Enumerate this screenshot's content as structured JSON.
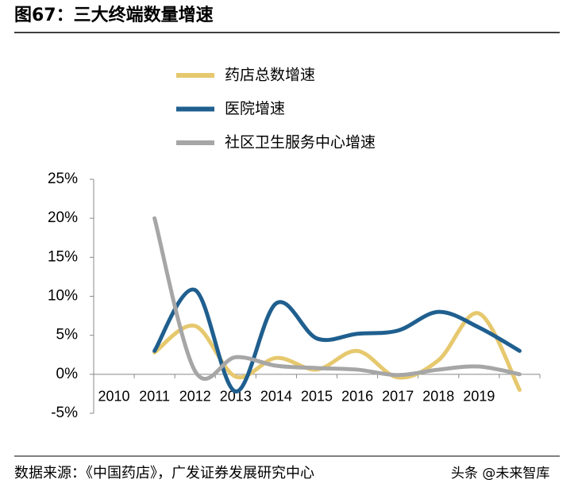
{
  "chart_data": {
    "type": "line",
    "title": "图67：三大终端数量增速",
    "categories": [
      "2010",
      "2011",
      "2012",
      "2013",
      "2014",
      "2015",
      "2016",
      "2017",
      "2018",
      "2019",
      null
    ],
    "series": [
      {
        "name": "药店总数增速",
        "color": "#e6c86e",
        "values": [
          null,
          2.8,
          6.2,
          -0.3,
          2.1,
          0.6,
          3.0,
          -0.4,
          1.8,
          7.8,
          -2.0
        ]
      },
      {
        "name": "医院增速",
        "color": "#1f5f8f",
        "values": [
          null,
          3.0,
          10.8,
          -2.2,
          9.1,
          4.6,
          5.2,
          5.6,
          8.0,
          6.0,
          3.0
        ]
      },
      {
        "name": "社区卫生服务中心增速",
        "color": "#a6a6a6",
        "values": [
          null,
          20.0,
          0.4,
          2.2,
          1.1,
          0.8,
          0.6,
          -0.1,
          0.6,
          1.0,
          0.0
        ]
      }
    ],
    "ylim": [
      -5,
      25
    ],
    "yticks": [
      {
        "value": -5,
        "label": "-5%"
      },
      {
        "value": 0,
        "label": "0%"
      },
      {
        "value": 5,
        "label": "5%"
      },
      {
        "value": 10,
        "label": "10%"
      },
      {
        "value": 15,
        "label": "15%"
      },
      {
        "value": 20,
        "label": "20%"
      },
      {
        "value": 25,
        "label": "25%"
      }
    ],
    "legend": "top",
    "source": "数据来源：《中国药店》，广发证券发展研究中心",
    "watermark": "头条 @未来智库"
  }
}
